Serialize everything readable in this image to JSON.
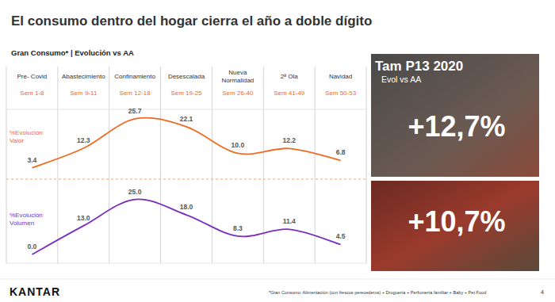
{
  "chart_data": {
    "type": "line",
    "title": "El consumo dentro del hogar cierra el año a doble dígito",
    "subtitle": "Gran Consumo* | Evolución vs AA",
    "categories": [
      "Pre- Covid",
      "Abastecimiento",
      "Confinamiento",
      "Desescalada",
      "Nueva Normalidad",
      "2ª Ola",
      "Navidad"
    ],
    "periods": [
      "Sem 1-8",
      "Sem 9-11",
      "Sem 12-18",
      "Sem 19-25",
      "Sem 26-40",
      "Sem 41-49",
      "Sem 50-53"
    ],
    "series": [
      {
        "name": "%Evolución Valor",
        "color": "#f26a21",
        "values": [
          3.4,
          12.3,
          25.7,
          22.1,
          10.0,
          12.2,
          6.8
        ],
        "value_labels": [
          "3.4",
          "12.3",
          "25.7",
          "22.1",
          "10.0",
          "12.2",
          "6.8"
        ]
      },
      {
        "name": "%Evolución Volumen",
        "color": "#7a2ec0",
        "axis": "y2",
        "values": [
          0.0,
          13.0,
          25.0,
          18.0,
          8.3,
          11.4,
          4.5
        ],
        "value_labels": [
          "0.0",
          "13.0",
          "25.0",
          "18.0",
          "8.3",
          "11.4",
          "4.5"
        ]
      }
    ],
    "ylim": [
      -40,
      30
    ],
    "yticks": [],
    "y2lim": [
      -4,
      66
    ],
    "y2ticks": [],
    "tick_labels": false,
    "grid": false,
    "data_labels": true,
    "panel": {
      "title": "Tam P13 2020",
      "subtitle": "Evol vs AA",
      "kpis": [
        "+12,7%",
        "+10,7%"
      ]
    },
    "brand": "KANTAR",
    "footnote": "*Gran Consumo: Alimentación (con frescos perecederos) + Droguería + Perfumería familiar + Baby + Pet Food",
    "page": 4
  }
}
